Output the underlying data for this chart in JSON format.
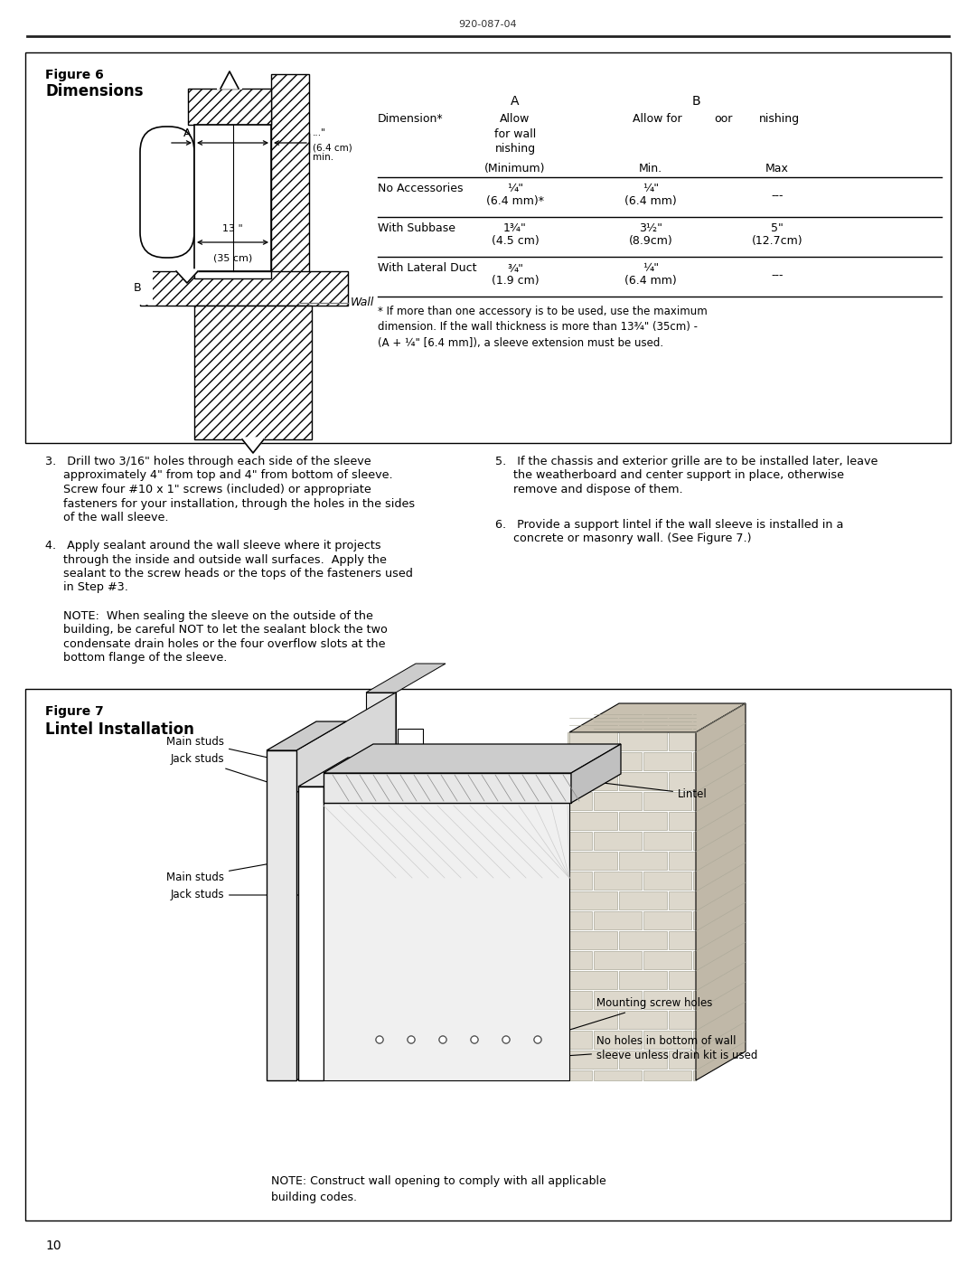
{
  "page_header": "920-087-04",
  "fig6_title_line1": "Figure 6",
  "fig6_title_line2": "Dimensions",
  "fig7_title_line1": "Figure 7",
  "fig7_title_line2": "Lintel Installation",
  "footnote": "* If more than one accessory is to be used, use the maximum\ndimension. If the wall thickness is more than 13¾\" (35cm) -\n(A + ¼\" [6.4 mm]), a sleeve extension must be used.",
  "step3_text_a": "3.   Drill two 3/16\" holes through each side of the sleeve",
  "step3_text_b": "     approximately 4\" from top and 4\" from bottom of sleeve.",
  "step3_text_c": "     Screw four #10 x 1\" screws (included) or appropriate",
  "step3_text_d": "     fasteners for your installation, through the holes in the sides",
  "step3_text_e": "     of the wall sleeve.",
  "step4_text_a": "4.   Apply sealant around the wall sleeve where it projects",
  "step4_text_b": "     through the inside and outside wall surfaces.  Apply the",
  "step4_text_c": "     sealant to the screw heads or the tops of the fasteners used",
  "step4_text_d": "     in Step #3.",
  "step4_note_a": "     NOTE:  When sealing the sleeve on the outside of the",
  "step4_note_b": "     building, be careful NOT to let the sealant block the two",
  "step4_note_c": "     condensate drain holes or the four overflow slots at the",
  "step4_note_d": "     bottom flange of the sleeve.",
  "step5_text_a": "5.   If the chassis and exterior grille are to be installed later, leave",
  "step5_text_b": "     the weatherboard and center support in place, otherwise",
  "step5_text_c": "     remove and dispose of them.",
  "step6_text_a": "6.   Provide a support lintel if the wall sleeve is installed in a",
  "step6_text_b": "     concrete or masonry wall. (See Figure 7.)",
  "fig7_note": "NOTE: Construct wall opening to comply with all applicable\nbuilding codes.",
  "page_number": "10"
}
